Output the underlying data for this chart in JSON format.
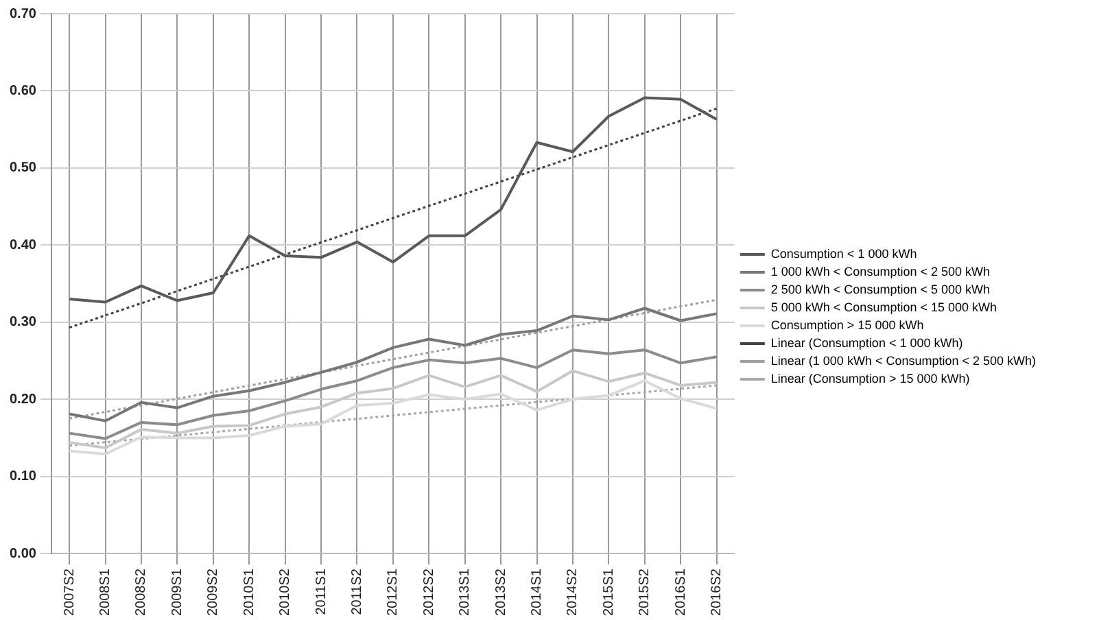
{
  "chart_data": {
    "type": "line",
    "categories": [
      "2007S2",
      "2008S1",
      "2008S2",
      "2009S1",
      "2009S2",
      "2010S1",
      "2010S2",
      "2011S1",
      "2011S2",
      "2012S1",
      "2012S2",
      "2013S1",
      "2013S2",
      "2014S1",
      "2014S2",
      "2015S1",
      "2015S2",
      "2016S1",
      "2016S2"
    ],
    "series": [
      {
        "name": "Consumption < 1 000 kWh",
        "color": "#5a5a5a",
        "values": [
          0.33,
          0.326,
          0.347,
          0.328,
          0.338,
          0.412,
          0.386,
          0.384,
          0.404,
          0.378,
          0.412,
          0.412,
          0.446,
          0.533,
          0.521,
          0.567,
          0.591,
          0.589,
          0.563
        ]
      },
      {
        "name": "1 000 kWh < Consumption < 2 500 kWh",
        "color": "#777777",
        "values": [
          0.181,
          0.172,
          0.196,
          0.189,
          0.204,
          0.211,
          0.222,
          0.235,
          0.248,
          0.267,
          0.278,
          0.27,
          0.284,
          0.289,
          0.308,
          0.303,
          0.318,
          0.302,
          0.311
        ]
      },
      {
        "name": "2 500 kWh < Consumption < 5 000 kWh",
        "color": "#8c8c8c",
        "values": [
          0.156,
          0.149,
          0.17,
          0.167,
          0.179,
          0.185,
          0.198,
          0.213,
          0.224,
          0.241,
          0.251,
          0.247,
          0.253,
          0.241,
          0.264,
          0.259,
          0.264,
          0.247,
          0.255
        ]
      },
      {
        "name": "5 000 kWh < Consumption < 15 000 kWh",
        "color": "#c8c8c8",
        "values": [
          0.144,
          0.137,
          0.161,
          0.156,
          0.165,
          0.166,
          0.181,
          0.19,
          0.208,
          0.214,
          0.231,
          0.216,
          0.231,
          0.21,
          0.237,
          0.223,
          0.234,
          0.218,
          0.222
        ]
      },
      {
        "name": "Consumption > 15 000 kWh",
        "color": "#dadada",
        "values": [
          0.133,
          0.129,
          0.151,
          0.15,
          0.15,
          0.153,
          0.165,
          0.168,
          0.192,
          0.195,
          0.206,
          0.2,
          0.207,
          0.186,
          0.2,
          0.205,
          0.224,
          0.201,
          0.188
        ]
      },
      {
        "name": "Linear (Consumption < 1 000 kWh)",
        "color": "#404040",
        "line_style": "dotted",
        "x": [
          "2007S2",
          "2016S2"
        ],
        "values": [
          0.293,
          0.577
        ]
      },
      {
        "name": "Linear (1 000 kWh < Consumption < 2 500 kWh)",
        "color": "#a0a0a0",
        "line_style": "dotted",
        "x": [
          "2007S2",
          "2016S2"
        ],
        "values": [
          0.175,
          0.329
        ]
      },
      {
        "name": "Linear (Consumption > 15 000 kWh)",
        "color": "#a8a8a8",
        "line_style": "dotted",
        "x": [
          "2007S2",
          "2016S2"
        ],
        "values": [
          0.14,
          0.218
        ]
      }
    ],
    "ylim": [
      0,
      0.7
    ],
    "yticks": [
      {
        "value": 0,
        "label": "0.00"
      },
      {
        "value": 0.1,
        "label": "0.10"
      },
      {
        "value": 0.2,
        "label": "0.20"
      },
      {
        "value": 0.3,
        "label": "0.30"
      },
      {
        "value": 0.4,
        "label": "0.40"
      },
      {
        "value": 0.5,
        "label": "0.50"
      },
      {
        "value": 0.6,
        "label": "0.60"
      },
      {
        "value": 0.7,
        "label": "0.70"
      }
    ],
    "grid": true,
    "legend": "right",
    "marker": "none",
    "line_style": "solid"
  }
}
